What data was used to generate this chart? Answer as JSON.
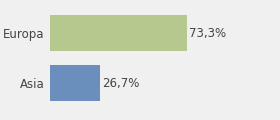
{
  "categories": [
    "Europa",
    "Asia"
  ],
  "values": [
    73.3,
    26.7
  ],
  "bar_colors": [
    "#b5c98e",
    "#6b8fbd"
  ],
  "labels": [
    "73,3%",
    "26,7%"
  ],
  "xlim": [
    0,
    105
  ],
  "background_color": "#f0f0f0",
  "bar_height": 0.72,
  "label_fontsize": 8.5,
  "tick_fontsize": 8.5
}
